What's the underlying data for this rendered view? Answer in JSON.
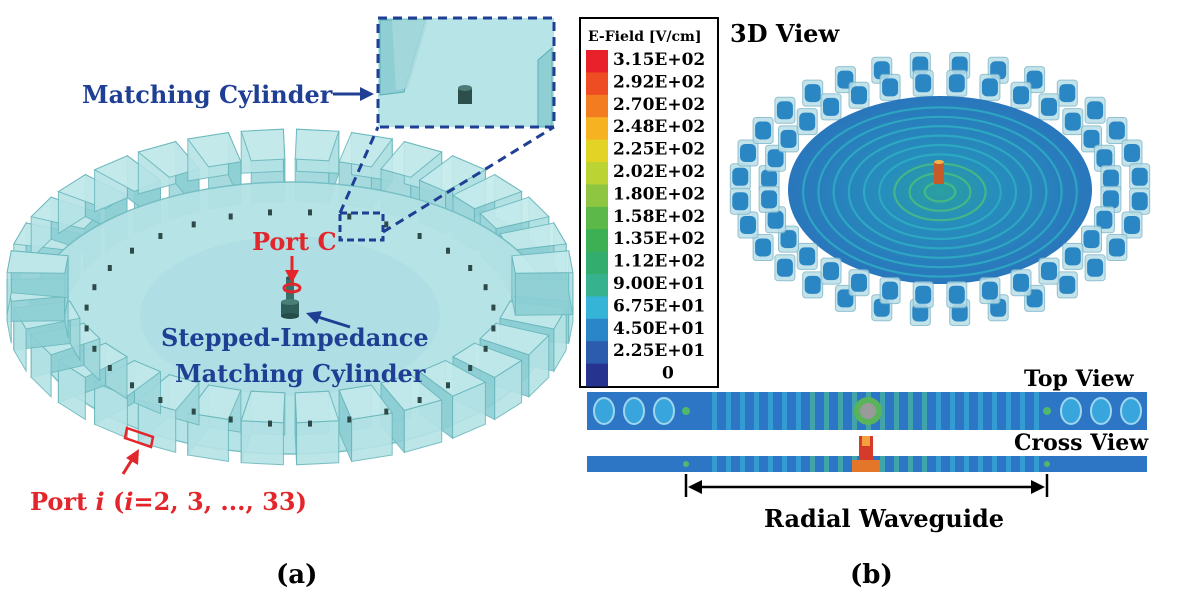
{
  "panel_a": {
    "caption": "(a)",
    "matching_cylinder_label": "Matching Cylinder",
    "port_c_label": "Port C",
    "stepped_label_line1": "Stepped-Impedance",
    "stepped_label_line2": "Matching Cylinder",
    "port_i_prefix": "Port ",
    "port_i_var": "i",
    "port_i_open": " (",
    "port_i_var2": "i",
    "port_i_rest": "=2, 3, ..., 33)"
  },
  "panel_b": {
    "caption": "(b)",
    "view_3d": "3D View",
    "view_top": "Top View",
    "view_cross": "Cross View",
    "radial_waveguide": "Radial Waveguide",
    "legend": {
      "title": "E-Field [V/cm]",
      "entries": [
        {
          "label": "3.15E+02",
          "color": "#e8212a"
        },
        {
          "label": "2.92E+02",
          "color": "#ee4c22"
        },
        {
          "label": "2.70E+02",
          "color": "#f37c20"
        },
        {
          "label": "2.48E+02",
          "color": "#f6b220"
        },
        {
          "label": "2.25E+02",
          "color": "#e2d324"
        },
        {
          "label": "2.02E+02",
          "color": "#bcd433"
        },
        {
          "label": "1.80E+02",
          "color": "#8ec641"
        },
        {
          "label": "1.58E+02",
          "color": "#5cb949"
        },
        {
          "label": "1.35E+02",
          "color": "#3cb052"
        },
        {
          "label": "1.12E+02",
          "color": "#33ad6d"
        },
        {
          "label": "9.00E+01",
          "color": "#37b28f"
        },
        {
          "label": "6.75E+01",
          "color": "#36b4d8"
        },
        {
          "label": "4.50E+01",
          "color": "#2b85c9"
        },
        {
          "label": "2.25E+01",
          "color": "#2b5cae"
        },
        {
          "label": "0",
          "color": "#27348f"
        }
      ]
    }
  },
  "colors": {
    "structure_fill": "#a9dde0",
    "structure_edge": "#6bb8bd",
    "annotation_blue": "#1f3f95",
    "annotation_red": "#e3262b"
  }
}
